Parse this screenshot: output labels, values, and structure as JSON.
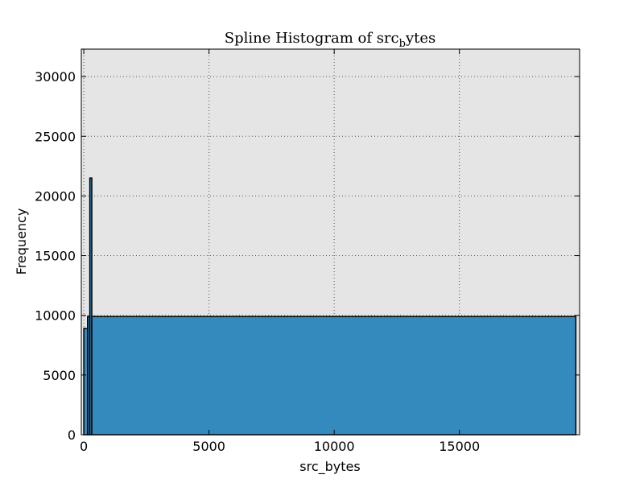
{
  "chart_data": {
    "type": "bar",
    "title": "Spline Histogram of src",
    "title_subscript": "b",
    "title_suffix": "ytes",
    "xlabel": "src_bytes",
    "ylabel": "Frequency",
    "xlim": [
      -100,
      19800
    ],
    "ylim": [
      0,
      32300
    ],
    "xticks": [
      0,
      5000,
      10000,
      15000
    ],
    "yticks": [
      0,
      5000,
      10000,
      15000,
      20000,
      25000,
      30000
    ],
    "xtick_labels": [
      "0",
      "5000",
      "10000",
      "15000"
    ],
    "ytick_labels": [
      "0",
      "5000",
      "10000",
      "15000",
      "20000",
      "25000",
      "30000"
    ],
    "grid": true,
    "bins": [
      {
        "x0": 0,
        "x1": 150,
        "value": 8900
      },
      {
        "x0": 150,
        "x1": 240,
        "value": 9900
      },
      {
        "x0": 240,
        "x1": 320,
        "value": 21500
      },
      {
        "x0": 320,
        "x1": 19650,
        "value": 9900
      }
    ],
    "colors": {
      "bar_fill": "#348abd",
      "bar_edge": "#000000",
      "plot_bg": "#e5e5e5",
      "grid": "#555555"
    }
  }
}
